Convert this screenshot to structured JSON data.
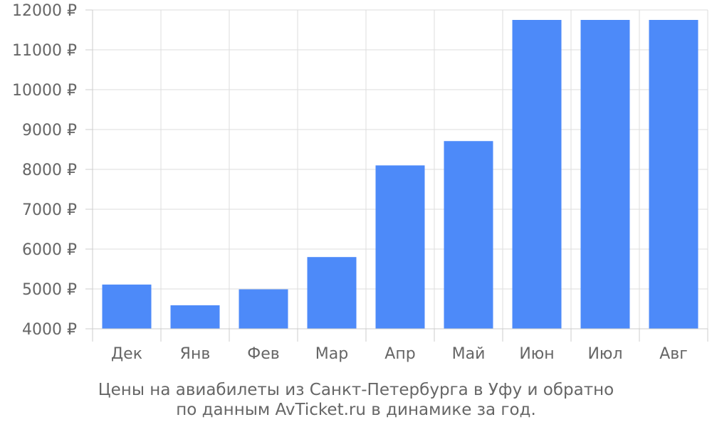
{
  "chart_data": {
    "type": "bar",
    "categories": [
      "Дек",
      "Янв",
      "Фев",
      "Мар",
      "Апр",
      "Май",
      "Июн",
      "Июл",
      "Авг"
    ],
    "values": [
      5110,
      4590,
      4990,
      5800,
      8100,
      8710,
      11750,
      11750,
      11750
    ],
    "ylim": [
      4000,
      12000
    ],
    "yticks": [
      4000,
      5000,
      6000,
      7000,
      8000,
      9000,
      10000,
      11000,
      12000
    ],
    "ytick_labels": [
      "4000 ₽",
      "5000 ₽",
      "6000 ₽",
      "7000 ₽",
      "8000 ₽",
      "9000 ₽",
      "10000 ₽",
      "11000 ₽",
      "12000 ₽"
    ],
    "grid": true,
    "bar_color": "#4d8af9",
    "caption": [
      "Цены на авиабилеты из Санкт-Петербурга в Уфу и обратно",
      "по данным AvTicket.ru в динамике за год."
    ]
  }
}
